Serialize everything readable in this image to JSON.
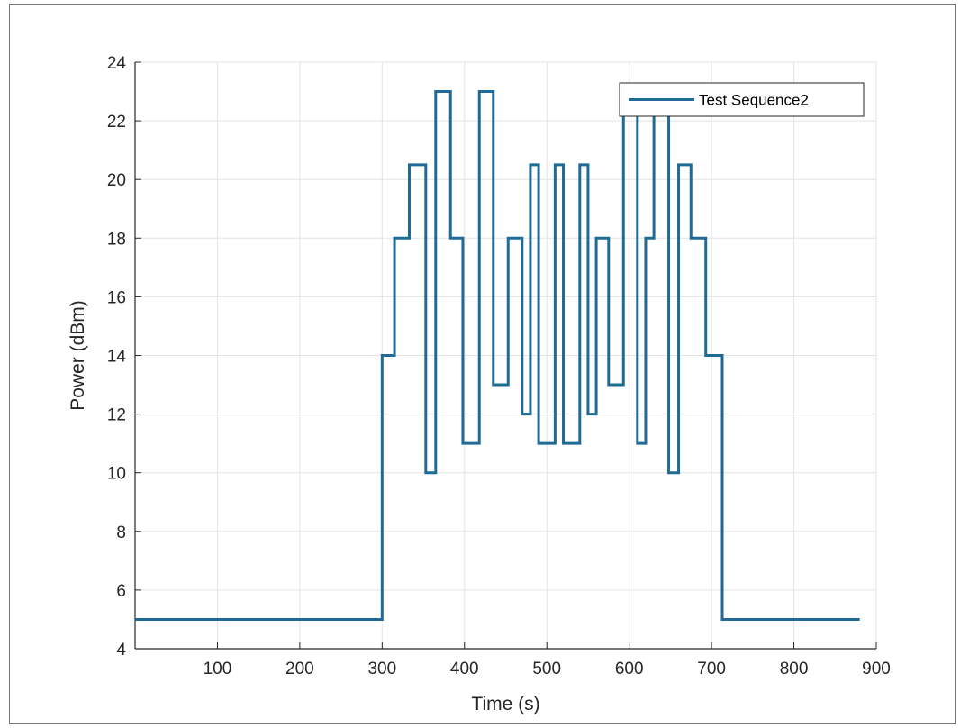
{
  "chart_data": {
    "type": "line",
    "title": "",
    "xlabel": "Time (s)",
    "ylabel": "Power (dBm)",
    "xlim": [
      0,
      900
    ],
    "ylim": [
      4,
      24
    ],
    "xticks": [
      100,
      200,
      300,
      400,
      500,
      600,
      700,
      800,
      900
    ],
    "yticks": [
      4,
      6,
      8,
      10,
      12,
      14,
      16,
      18,
      20,
      22,
      24
    ],
    "grid": true,
    "legend_position": "top-right",
    "colors": {
      "line": "#1f6b96",
      "grid": "#e3e3e3",
      "axis": "#262626"
    },
    "series": [
      {
        "name": "Test Sequence2",
        "step": true,
        "x": [
          0,
          300,
          315,
          333,
          353,
          365,
          383,
          398,
          418,
          435,
          453,
          470,
          480,
          490,
          510,
          520,
          540,
          550,
          560,
          575,
          593,
          610,
          620,
          630,
          648,
          660,
          675,
          693,
          713,
          728,
          880
        ],
        "y": [
          5,
          14,
          18,
          20.5,
          10,
          23,
          18,
          11,
          23,
          13,
          18,
          12,
          20.5,
          11,
          20.5,
          11,
          20.5,
          12,
          18,
          13,
          23,
          11,
          18,
          23,
          10,
          20.5,
          18,
          14,
          5,
          5,
          5
        ]
      }
    ]
  }
}
